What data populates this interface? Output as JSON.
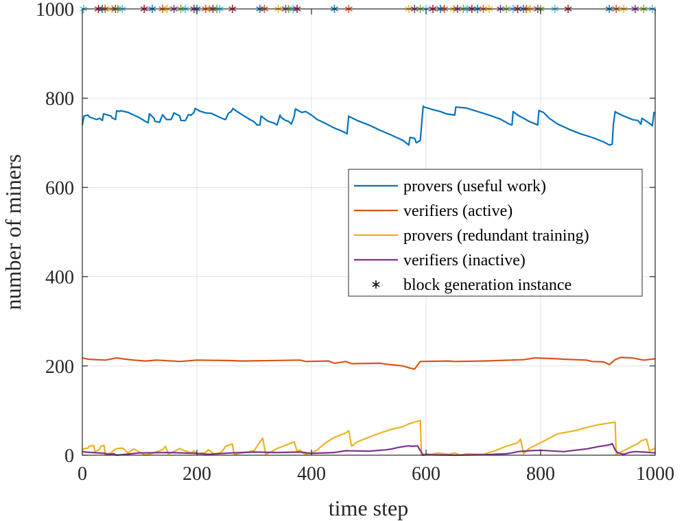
{
  "chart_data": {
    "type": "line",
    "title": "",
    "xlabel": "time step",
    "ylabel": "number of miners",
    "xlim": [
      0,
      1000
    ],
    "ylim": [
      0,
      1000
    ],
    "xticks": [
      0,
      200,
      400,
      600,
      800,
      1000
    ],
    "yticks": [
      0,
      200,
      400,
      600,
      800,
      1000
    ],
    "grid": true,
    "legend_position": "right-center",
    "series": [
      {
        "name": "provers (useful work)",
        "color": "#0072BD",
        "x": [
          0,
          3,
          10,
          12,
          25,
          30,
          35,
          37,
          50,
          52,
          58,
          60,
          65,
          67,
          80,
          90,
          100,
          110,
          115,
          117,
          125,
          127,
          135,
          140,
          145,
          147,
          155,
          160,
          170,
          172,
          180,
          185,
          190,
          195,
          197,
          205,
          215,
          225,
          235,
          245,
          250,
          255,
          260,
          263,
          270,
          280,
          290,
          300,
          305,
          310,
          312,
          320,
          325,
          335,
          340,
          345,
          347,
          355,
          360,
          365,
          370,
          372,
          380,
          383,
          390,
          400,
          410,
          425,
          440,
          450,
          460,
          462,
          465,
          467,
          480,
          500,
          520,
          540,
          560,
          565,
          570,
          572,
          580,
          583,
          590,
          595,
          597,
          610,
          625,
          635,
          650,
          652,
          670,
          690,
          710,
          730,
          745,
          750,
          752,
          760,
          780,
          795,
          797,
          805,
          815,
          830,
          850,
          870,
          890,
          910,
          920,
          925,
          927,
          930,
          932,
          945,
          960,
          970,
          975,
          977,
          985,
          992,
          995,
          998,
          1000
        ],
        "values": [
          740,
          760,
          762,
          758,
          752,
          755,
          750,
          765,
          760,
          756,
          752,
          772,
          770,
          772,
          768,
          762,
          756,
          748,
          745,
          765,
          755,
          748,
          746,
          763,
          755,
          752,
          752,
          767,
          760,
          750,
          750,
          763,
          762,
          768,
          777,
          771,
          767,
          766,
          760,
          754,
          752,
          766,
          770,
          777,
          770,
          762,
          754,
          747,
          740,
          740,
          760,
          752,
          748,
          744,
          740,
          762,
          757,
          750,
          748,
          742,
          760,
          776,
          770,
          768,
          770,
          762,
          752,
          743,
          733,
          728,
          722,
          720,
          760,
          758,
          750,
          740,
          728,
          717,
          705,
          700,
          695,
          712,
          710,
          700,
          705,
          782,
          780,
          775,
          770,
          765,
          762,
          780,
          778,
          770,
          762,
          753,
          742,
          740,
          770,
          762,
          748,
          740,
          772,
          768,
          755,
          742,
          730,
          720,
          712,
          702,
          695,
          697,
          740,
          770,
          768,
          760,
          752,
          750,
          742,
          755,
          748,
          742,
          738,
          768,
          766
        ]
      },
      {
        "name": "verifiers (active)",
        "color": "#D95319",
        "x": [
          0,
          10,
          40,
          60,
          70,
          90,
          110,
          130,
          170,
          200,
          260,
          280,
          380,
          390,
          430,
          440,
          460,
          470,
          520,
          530,
          560,
          570,
          580,
          590,
          640,
          650,
          700,
          770,
          790,
          830,
          840,
          880,
          890,
          910,
          920,
          930,
          940,
          960,
          980,
          1000
        ],
        "values": [
          218,
          215,
          213,
          218,
          216,
          213,
          211,
          213,
          210,
          213,
          212,
          211,
          213,
          210,
          211,
          206,
          210,
          205,
          206,
          204,
          200,
          196,
          193,
          210,
          211,
          210,
          211,
          214,
          218,
          216,
          215,
          213,
          210,
          209,
          203,
          214,
          219,
          218,
          213,
          216
        ]
      },
      {
        "name": "provers (redundant training)",
        "color": "#EDB120",
        "x": [
          0,
          10,
          12,
          20,
          22,
          30,
          32,
          38,
          40,
          50,
          55,
          60,
          70,
          80,
          85,
          90,
          110,
          125,
          130,
          140,
          145,
          150,
          160,
          170,
          175,
          190,
          195,
          200,
          215,
          220,
          230,
          240,
          245,
          250,
          262,
          265,
          280,
          300,
          305,
          310,
          315,
          320,
          330,
          340,
          350,
          360,
          370,
          375,
          380,
          385,
          390,
          400,
          410,
          425,
          440,
          450,
          460,
          465,
          470,
          480,
          500,
          520,
          540,
          560,
          570,
          575,
          580,
          585,
          590,
          592,
          600,
          610,
          620,
          640,
          650,
          660,
          670,
          700,
          720,
          740,
          760,
          765,
          770,
          780,
          800,
          815,
          830,
          860,
          880,
          900,
          920,
          930,
          932,
          945,
          960,
          970,
          975,
          985,
          990,
          997,
          1000
        ],
        "values": [
          14,
          16,
          20,
          22,
          8,
          13,
          20,
          22,
          2,
          5,
          11,
          15,
          16,
          5,
          10,
          14,
          0,
          5,
          8,
          12,
          20,
          3,
          8,
          15,
          12,
          5,
          10,
          3,
          6,
          12,
          3,
          5,
          10,
          20,
          25,
          2,
          5,
          10,
          20,
          30,
          38,
          2,
          8,
          15,
          20,
          25,
          30,
          8,
          12,
          5,
          2,
          5,
          12,
          28,
          40,
          45,
          50,
          55,
          20,
          30,
          40,
          50,
          58,
          64,
          70,
          72,
          74,
          76,
          78,
          0,
          3,
          2,
          5,
          2,
          5,
          0,
          3,
          2,
          10,
          20,
          28,
          36,
          3,
          15,
          28,
          38,
          48,
          55,
          62,
          68,
          72,
          74,
          2,
          10,
          20,
          26,
          32,
          36,
          10,
          14,
          16
        ]
      },
      {
        "name": "verifiers (inactive)",
        "color": "#7E2F8E",
        "x": [
          0,
          5,
          40,
          45,
          55,
          60,
          100,
          150,
          200,
          220,
          260,
          300,
          340,
          380,
          400,
          440,
          460,
          500,
          530,
          540,
          550,
          560,
          570,
          575,
          585,
          595,
          600,
          650,
          700,
          740,
          750,
          760,
          780,
          800,
          840,
          860,
          880,
          900,
          920,
          925,
          930,
          935,
          945,
          955,
          965,
          980,
          1000
        ],
        "values": [
          8,
          7,
          4,
          2,
          3,
          0,
          5,
          6,
          4,
          2,
          5,
          7,
          6,
          7,
          4,
          6,
          10,
          9,
          12,
          14,
          17,
          19,
          21,
          20,
          21,
          0,
          1,
          0,
          1,
          3,
          5,
          8,
          10,
          11,
          8,
          11,
          14,
          19,
          23,
          26,
          12,
          5,
          2,
          6,
          8,
          7,
          5
        ]
      }
    ],
    "markers": {
      "name": "block generation instance",
      "symbol": "*",
      "legend_color": "#000000",
      "y": 1000,
      "colors": [
        "#4DBEEE",
        "#A2142F",
        "#0072BD",
        "#D95319",
        "#EDB120",
        "#7E2F8E",
        "#77AC30"
      ],
      "x": [
        2,
        28,
        35,
        40,
        52,
        58,
        62,
        70,
        108,
        122,
        140,
        148,
        160,
        172,
        180,
        195,
        200,
        215,
        222,
        228,
        235,
        240,
        262,
        310,
        318,
        342,
        355,
        360,
        368,
        375,
        440,
        465,
        570,
        580,
        590,
        600,
        612,
        625,
        632,
        648,
        655,
        665,
        672,
        680,
        690,
        700,
        710,
        730,
        740,
        752,
        760,
        770,
        775,
        782,
        795,
        800,
        825,
        848,
        920,
        932,
        945,
        965,
        980,
        995
      ]
    }
  }
}
